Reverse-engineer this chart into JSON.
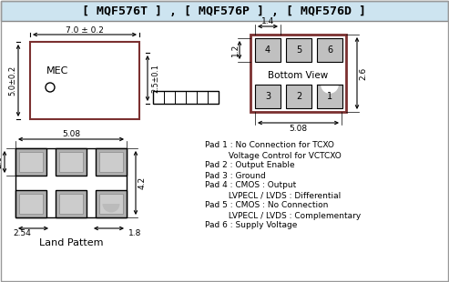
{
  "title": "[ MQF576T ] , [ MQF576P ] , [ MQF576D ]",
  "title_bg": "#ddeeff",
  "bg_color": "#ffffff",
  "pad_descriptions": [
    [
      "Pad 1 : No Connection for TCXO",
      160
    ],
    [
      "         Voltage Control for VCTCXO",
      171
    ],
    [
      "Pad 2 : Output Enable",
      182
    ],
    [
      "Pad 3 : Ground",
      193
    ],
    [
      "Pad 4 : CMOS : Output",
      204
    ],
    [
      "         LVPECL / LVDS : Differential",
      215
    ],
    [
      "Pad 5 : CMOS : No Connection",
      226
    ],
    [
      "         LVPECL / LVDS : Complementary",
      237
    ],
    [
      "Pad 6 : Supply Voltage",
      248
    ]
  ],
  "land_pattern_label": "Land Pattem",
  "pkg_border_color": "#7B3030",
  "bv_border_color": "#7B3030",
  "pad_fill": "#c0c0c0",
  "pad_inner_fill": "#d0d0d0"
}
